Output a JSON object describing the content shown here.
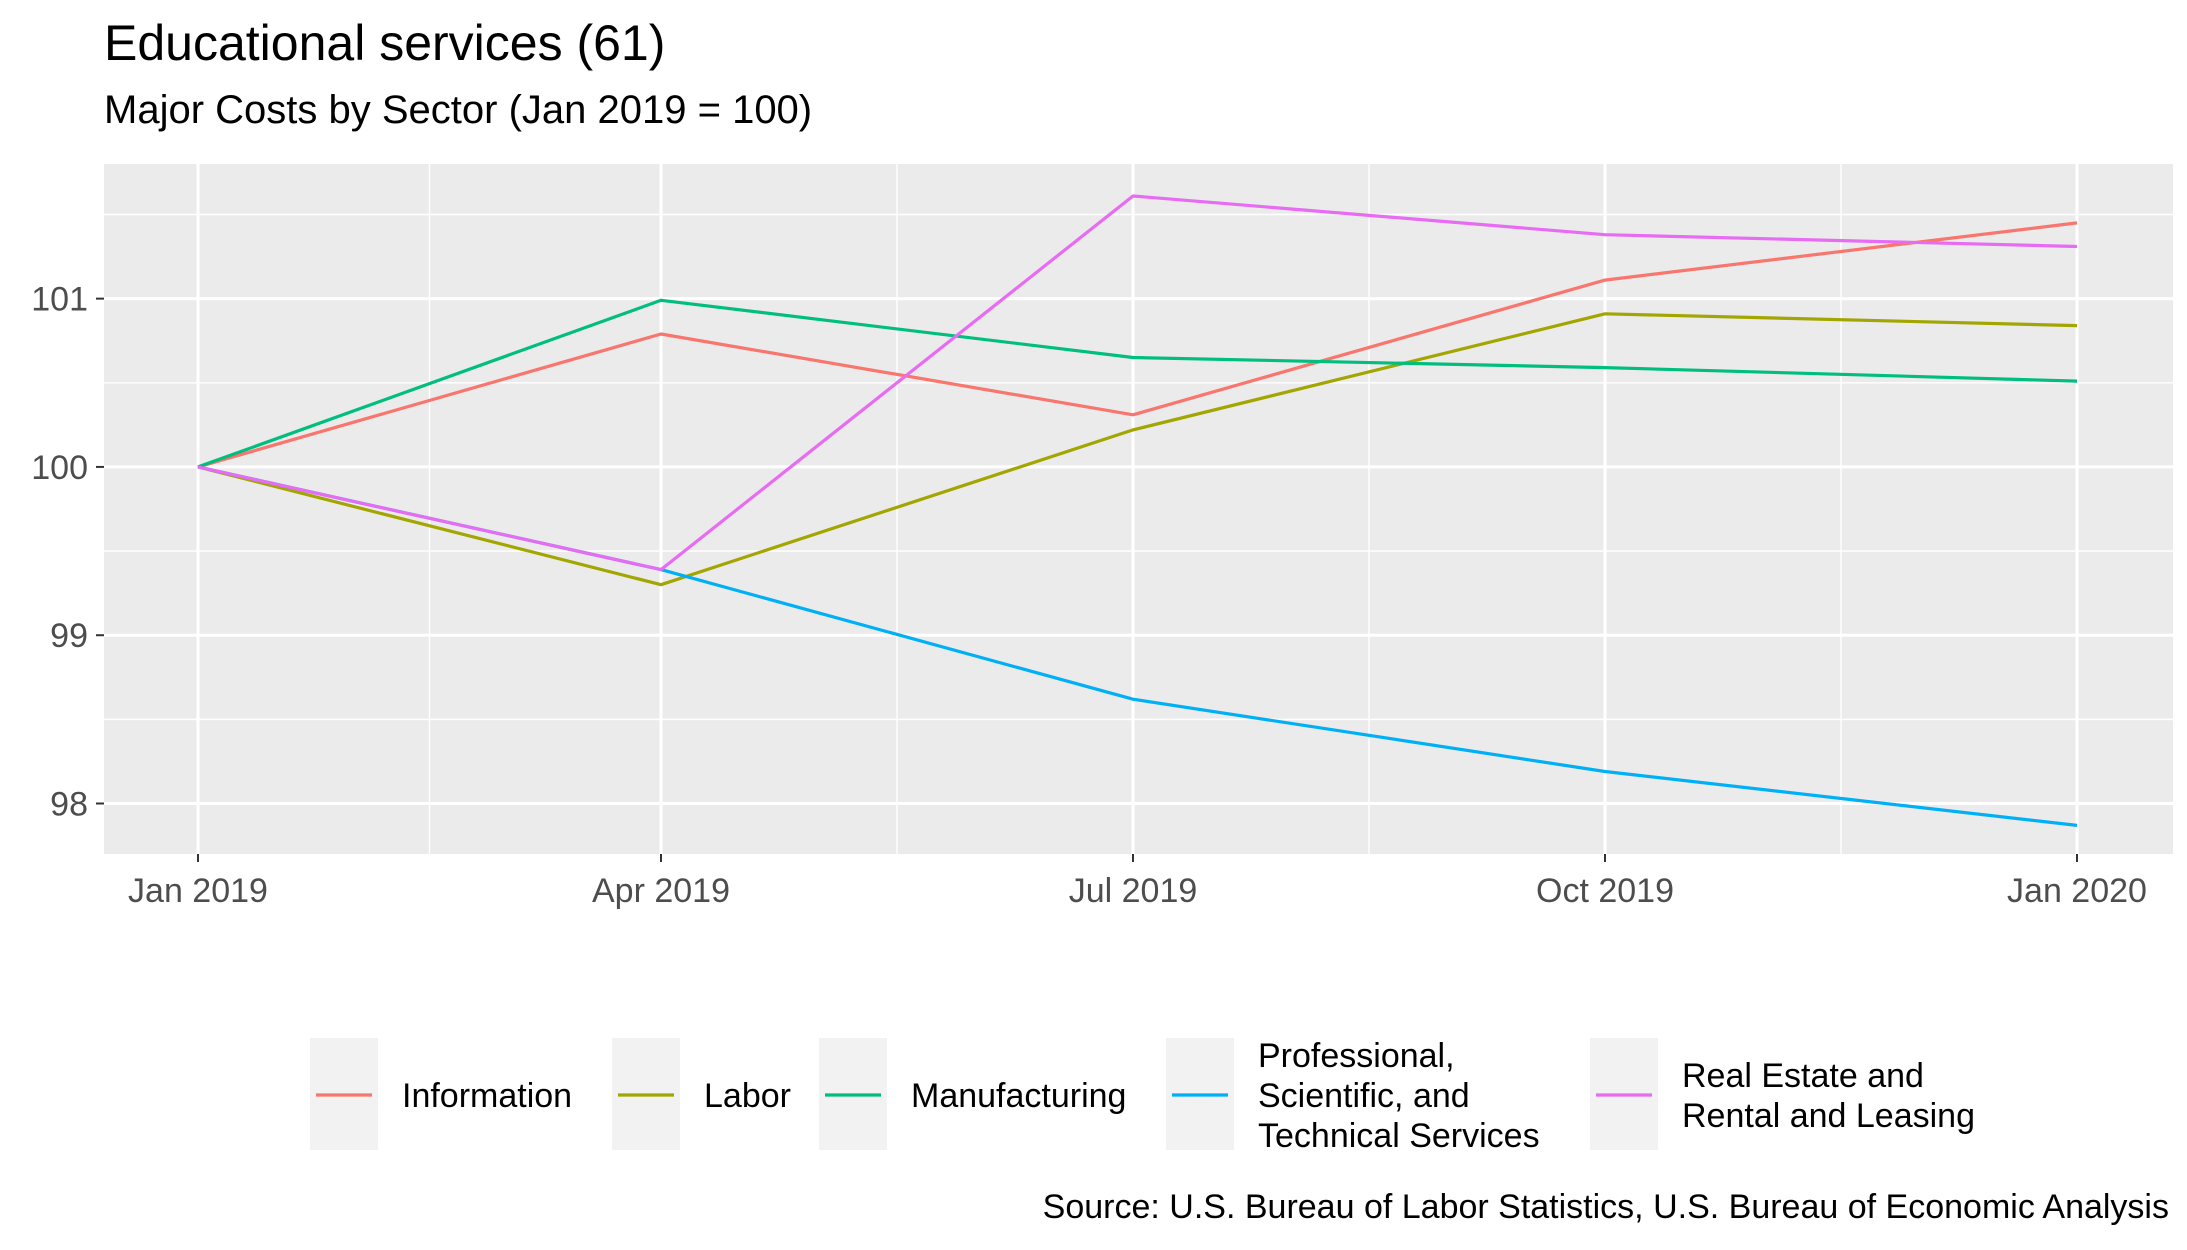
{
  "header": {
    "title": "Educational services (61)",
    "subtitle": "Major Costs by Sector (Jan 2019 = 100)"
  },
  "footer": {
    "source": "Source: U.S. Bureau of Labor Statistics, U.S. Bureau of Economic Analysis"
  },
  "chart_data": {
    "type": "line",
    "title": "Educational services (61)",
    "subtitle": "Major Costs by Sector (Jan 2019 = 100)",
    "xlabel": "",
    "ylabel": "",
    "x": [
      "2019-01",
      "2019-04",
      "2019-07",
      "2019-10",
      "2020-01"
    ],
    "x_tick_labels": [
      "Jan 2019",
      "Apr 2019",
      "Jul 2019",
      "Oct 2019",
      "Jan 2020"
    ],
    "y_ticks": [
      98,
      99,
      100,
      101
    ],
    "ylim": [
      97.7,
      101.8
    ],
    "grid": true,
    "legend_position": "bottom",
    "series": [
      {
        "name": "Information",
        "color": "#F8766D",
        "values": [
          100,
          100.79,
          100.31,
          101.11,
          101.45
        ]
      },
      {
        "name": "Labor",
        "color": "#A3A500",
        "values": [
          100,
          99.3,
          100.22,
          100.91,
          100.84
        ]
      },
      {
        "name": "Manufacturing",
        "color": "#00BF7D",
        "values": [
          100,
          100.99,
          100.65,
          100.59,
          100.51
        ]
      },
      {
        "name": "Professional,\nScientific, and\nTechnical Services",
        "color": "#00B0F6",
        "values": [
          100,
          99.39,
          98.62,
          98.19,
          97.87
        ]
      },
      {
        "name": "Real Estate and\nRental and Leasing",
        "color": "#E76BF3",
        "values": [
          100,
          99.39,
          101.61,
          101.38,
          101.31
        ]
      }
    ]
  }
}
